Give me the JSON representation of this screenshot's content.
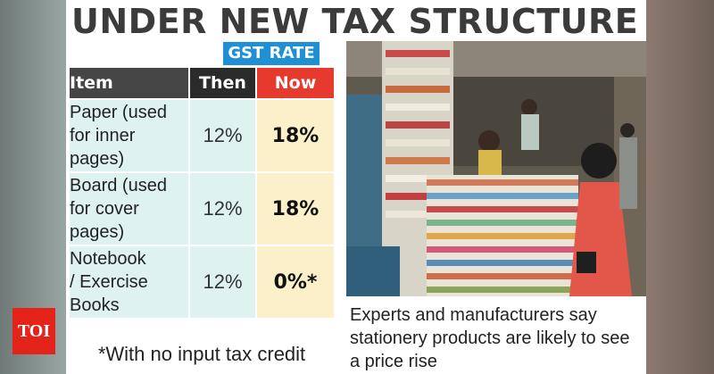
{
  "headline": "UNDER NEW TAX STRUCTURE",
  "gst_label": "GST RATE",
  "table": {
    "headers": [
      "Item",
      "Then",
      "Now"
    ],
    "rows": [
      {
        "item": [
          "Paper (used",
          "for inner",
          "pages)"
        ],
        "then": "12%",
        "now": "18%"
      },
      {
        "item": [
          "Board (used",
          "for cover",
          "pages)"
        ],
        "then": "12%",
        "now": "18%"
      },
      {
        "item": [
          "Notebook",
          "/ Exercise",
          "Books"
        ],
        "then": "12%",
        "now": "0%*"
      }
    ]
  },
  "footnote": "*With no input tax credit",
  "caption": [
    "Experts and manufacturers say",
    "stationery products are likely to see",
    "a price rise"
  ],
  "logo": "TOI",
  "colors": {
    "gst_blue": "#1f8fd6",
    "now_red": "#e63a2e",
    "then_dark": "#2b2b2b",
    "item_bg": "#dff2f2",
    "now_bg": "#fbf0c9"
  }
}
